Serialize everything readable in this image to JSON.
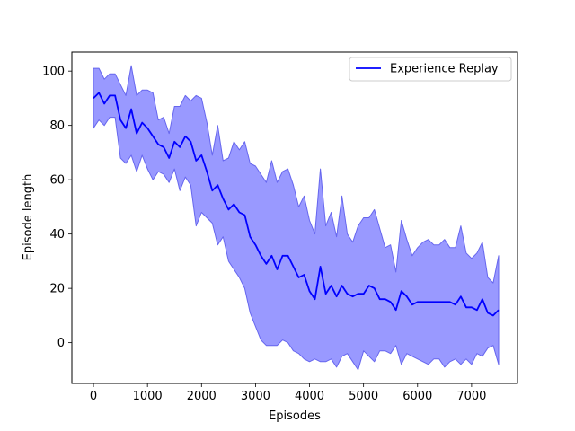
{
  "chart_data": {
    "type": "line",
    "title": "",
    "xlabel": "Episodes",
    "ylabel": "Episode length",
    "xlim": [
      -400,
      7850
    ],
    "ylim": [
      -15,
      107
    ],
    "xticks": [
      0,
      1000,
      2000,
      3000,
      4000,
      5000,
      6000,
      7000
    ],
    "yticks": [
      0,
      20,
      40,
      60,
      80,
      100
    ],
    "grid": false,
    "legend_position": "top-right",
    "colors": {
      "line": "#0000ff",
      "band_fill": "#9999ff",
      "band_edge": "#6666ee"
    },
    "series": [
      {
        "name": "Experience Replay",
        "x": [
          0,
          100,
          200,
          300,
          400,
          500,
          600,
          700,
          800,
          900,
          1000,
          1100,
          1200,
          1300,
          1400,
          1500,
          1600,
          1700,
          1800,
          1900,
          2000,
          2100,
          2200,
          2300,
          2400,
          2500,
          2600,
          2700,
          2800,
          2900,
          3000,
          3100,
          3200,
          3300,
          3400,
          3500,
          3600,
          3700,
          3800,
          3900,
          4000,
          4100,
          4200,
          4300,
          4400,
          4500,
          4600,
          4700,
          4800,
          4900,
          5000,
          5100,
          5200,
          5300,
          5400,
          5500,
          5600,
          5700,
          5800,
          5900,
          6000,
          6100,
          6200,
          6300,
          6400,
          6500,
          6600,
          6700,
          6800,
          6900,
          7000,
          7100,
          7200,
          7300,
          7400,
          7500
        ],
        "mean": [
          90,
          92,
          88,
          91,
          91,
          82,
          79,
          86,
          77,
          81,
          79,
          76,
          73,
          72,
          68,
          74,
          72,
          76,
          74,
          67,
          69,
          63,
          56,
          58,
          53,
          49,
          51,
          48,
          47,
          39,
          36,
          32,
          29,
          32,
          27,
          32,
          32,
          28,
          24,
          25,
          19,
          16,
          28,
          18,
          21,
          17,
          21,
          18,
          17,
          18,
          18,
          21,
          20,
          16,
          16,
          15,
          12,
          19,
          17,
          14,
          15,
          15,
          15,
          15,
          15,
          15,
          15,
          14,
          17,
          13,
          13,
          12,
          16,
          11,
          10,
          12
        ],
        "upper": [
          101,
          101,
          97,
          99,
          99,
          95,
          91,
          102,
          91,
          93,
          93,
          92,
          82,
          83,
          77,
          87,
          87,
          91,
          89,
          91,
          90,
          81,
          69,
          80,
          67,
          68,
          74,
          71,
          74,
          66,
          65,
          62,
          59,
          67,
          59,
          63,
          64,
          58,
          50,
          54,
          45,
          40,
          64,
          43,
          48,
          39,
          54,
          40,
          37,
          43,
          46,
          46,
          49,
          42,
          35,
          36,
          26,
          45,
          38,
          32,
          35,
          37,
          38,
          36,
          36,
          38,
          35,
          35,
          43,
          33,
          31,
          33,
          37,
          24,
          22,
          32
        ],
        "lower": [
          79,
          82,
          80,
          83,
          83,
          68,
          66,
          69,
          63,
          69,
          64,
          60,
          63,
          62,
          59,
          64,
          56,
          61,
          58,
          43,
          48,
          46,
          44,
          36,
          39,
          30,
          27,
          24,
          20,
          11,
          6,
          1,
          -1,
          -1,
          -1,
          1,
          0,
          -3,
          -4,
          -6,
          -7,
          -6,
          -7,
          -7,
          -6,
          -9,
          -5,
          -4,
          -7,
          -10,
          -3,
          -5,
          -7,
          -3,
          -3,
          -4,
          -1,
          -8,
          -4,
          -5,
          -6,
          -7,
          -8,
          -6,
          -6,
          -9,
          -7,
          -6,
          -8,
          -6,
          -8,
          -4,
          -5,
          -2,
          -1,
          -8
        ]
      }
    ]
  }
}
